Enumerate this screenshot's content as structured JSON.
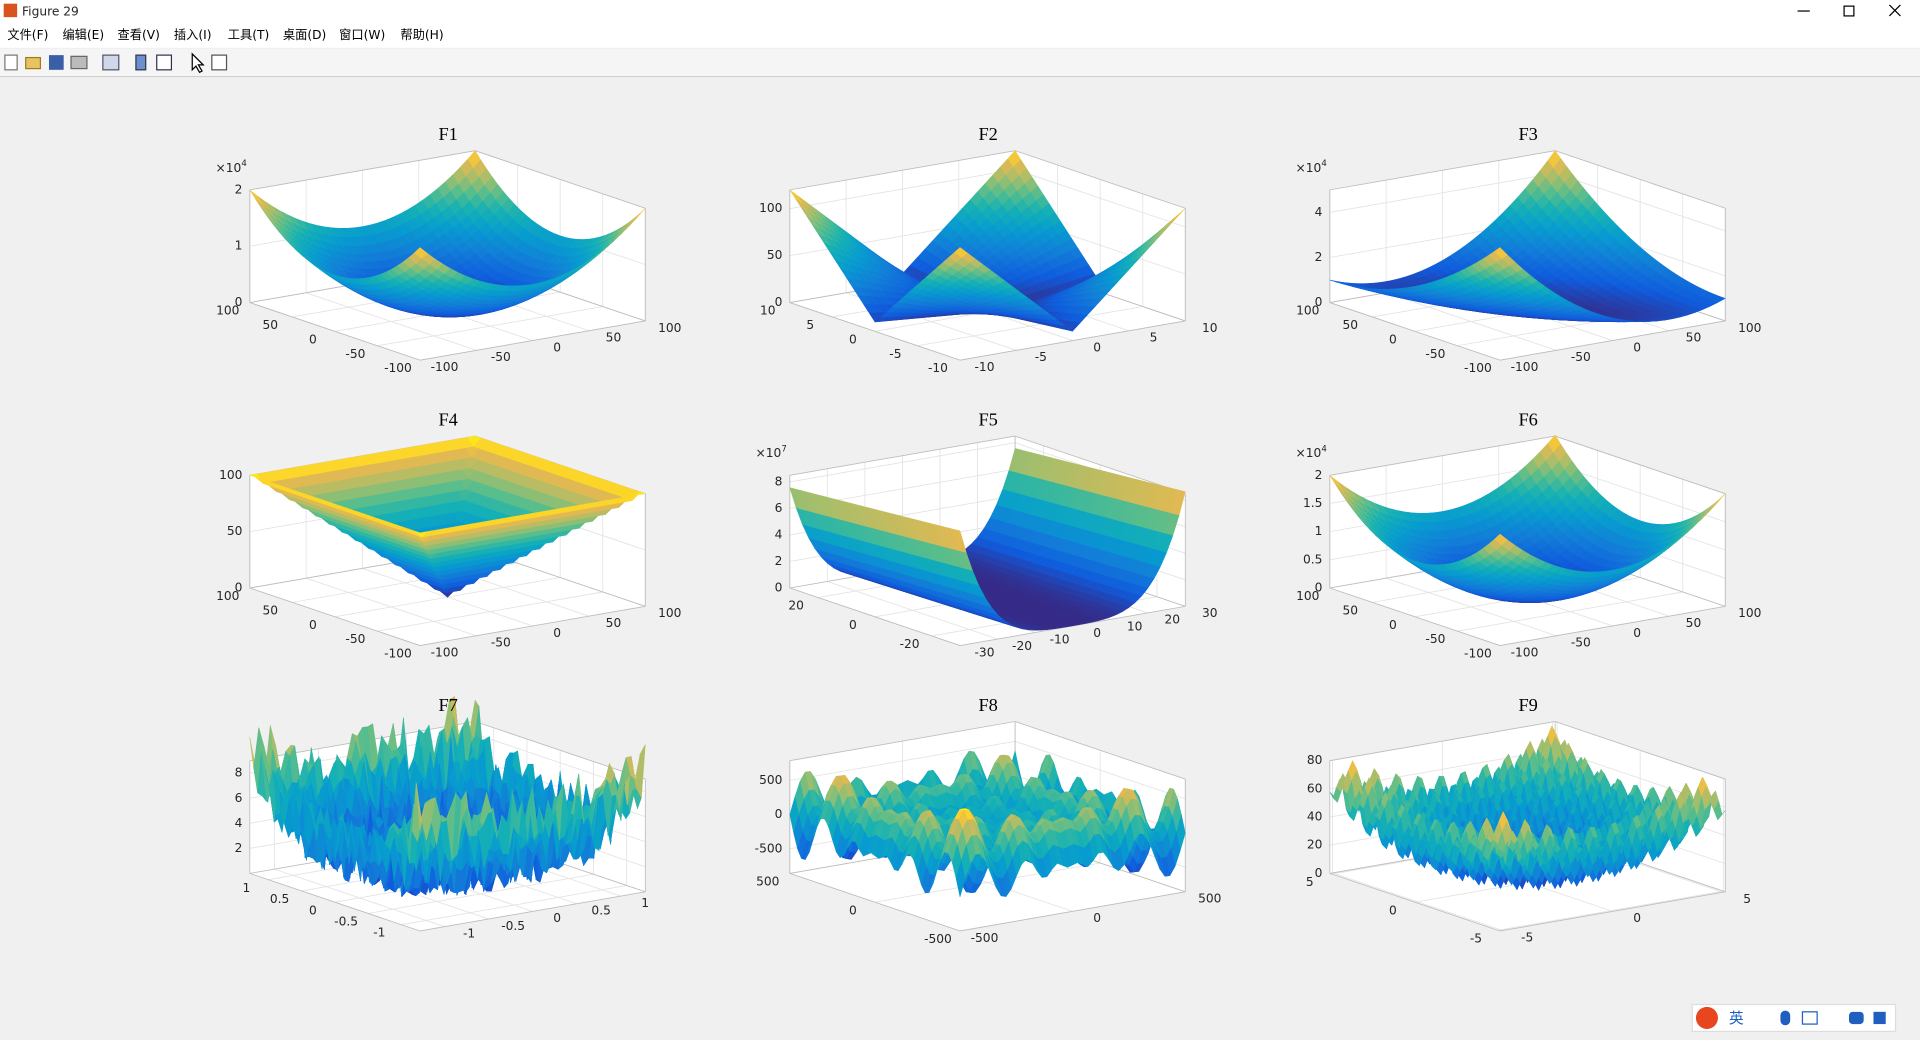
{
  "window": {
    "title": "Figure 29",
    "menu": [
      "文件(F)",
      "编辑(E)",
      "查看(V)",
      "插入(I)",
      "工具(T)",
      "桌面(D)",
      "窗口(W)",
      "帮助(H)"
    ]
  },
  "ime": "英",
  "plots": [
    {
      "title": "F1",
      "multiplier": {
        "base": "×10",
        "exp": "4"
      },
      "zlim": [
        0,
        2
      ],
      "zticks": [
        0,
        1,
        2
      ],
      "xlim": [
        -100,
        100
      ],
      "xticks": [
        -100,
        -50,
        0,
        50,
        100
      ],
      "ylim": [
        -100,
        100
      ],
      "yticks": [
        -100,
        -50,
        0,
        50,
        100
      ]
    },
    {
      "title": "F2",
      "zlim": [
        0,
        120
      ],
      "zticks": [
        0,
        50,
        100
      ],
      "xlim": [
        -10,
        10
      ],
      "xticks": [
        -10,
        -5,
        0,
        5,
        10
      ],
      "ylim": [
        -10,
        10
      ],
      "yticks": [
        -10,
        -5,
        0,
        5,
        10
      ]
    },
    {
      "title": "F3",
      "multiplier": {
        "base": "×10",
        "exp": "4"
      },
      "zlim": [
        0,
        5
      ],
      "zticks": [
        0,
        2,
        4
      ],
      "xlim": [
        -100,
        100
      ],
      "xticks": [
        -100,
        -50,
        0,
        50,
        100
      ],
      "ylim": [
        -100,
        100
      ],
      "yticks": [
        -100,
        -50,
        0,
        50,
        100
      ]
    },
    {
      "title": "F4",
      "zlim": [
        0,
        100
      ],
      "zticks": [
        0,
        50,
        100
      ],
      "xlim": [
        -100,
        100
      ],
      "xticks": [
        -100,
        -50,
        0,
        50,
        100
      ],
      "ylim": [
        -100,
        100
      ],
      "yticks": [
        -100,
        -50,
        0,
        50,
        100
      ]
    },
    {
      "title": "F5",
      "multiplier": {
        "base": "×10",
        "exp": "7"
      },
      "zlim": [
        0,
        8.5
      ],
      "zticks": [
        0,
        2,
        4,
        6,
        8
      ],
      "xlim": [
        -30,
        30
      ],
      "xticks": [
        -30,
        -20,
        -10,
        0,
        10,
        20,
        30
      ],
      "ylim": [
        -30,
        30
      ],
      "yticks": [
        -20,
        0,
        20
      ]
    },
    {
      "title": "F6",
      "multiplier": {
        "base": "×10",
        "exp": "4"
      },
      "zlim": [
        0,
        2
      ],
      "zticks": [
        0,
        0.5,
        1,
        1.5,
        2
      ],
      "xlim": [
        -100,
        100
      ],
      "xticks": [
        -100,
        -50,
        0,
        50,
        100
      ],
      "ylim": [
        -100,
        100
      ],
      "yticks": [
        -100,
        -50,
        0,
        50,
        100
      ]
    },
    {
      "title": "F7",
      "zlim": [
        0,
        9
      ],
      "zticks": [
        2,
        4,
        6,
        8
      ],
      "xlim": [
        -1.28,
        1.28
      ],
      "xticks": [
        -1,
        -0.5,
        0,
        0.5,
        1
      ],
      "ylim": [
        -1.28,
        1.28
      ],
      "yticks": [
        -1,
        -0.5,
        0,
        0.5,
        1
      ]
    },
    {
      "title": "F8",
      "zlim": [
        -860,
        790
      ],
      "zticks": [
        -500,
        0,
        500
      ],
      "xlim": [
        -500,
        500
      ],
      "xticks": [
        -500,
        0,
        500
      ],
      "ylim": [
        -500,
        500
      ],
      "yticks": [
        -500,
        0,
        500
      ]
    },
    {
      "title": "F9",
      "zlim": [
        0,
        80
      ],
      "zticks": [
        0,
        20,
        40,
        60,
        80
      ],
      "xlim": [
        -5.12,
        5.12
      ],
      "xticks": [
        -5,
        0,
        5
      ],
      "ylim": [
        -5.12,
        5.12
      ],
      "yticks": [
        -5,
        0,
        5
      ]
    }
  ]
}
